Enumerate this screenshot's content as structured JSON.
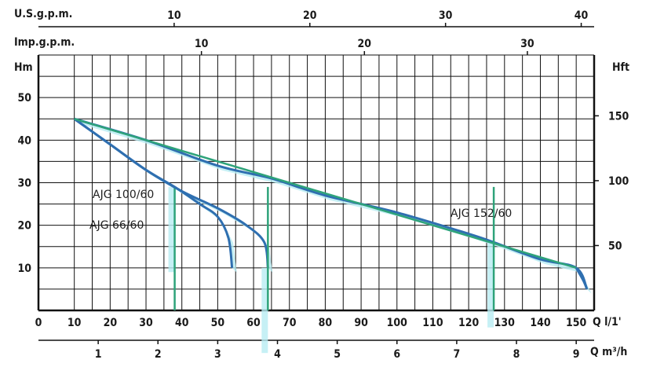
{
  "chart_data": {
    "type": "line",
    "title": "",
    "axes": {
      "x_main": {
        "unit": "Q l/1'",
        "ticks": [
          "0",
          "10",
          "20",
          "30",
          "40",
          "50",
          "60",
          "70",
          "80",
          "90",
          "100",
          "110",
          "120",
          "130",
          "140",
          "150"
        ]
      },
      "x_m3h": {
        "unit": "Q m³/h",
        "ticks": [
          "1",
          "2",
          "3",
          "4",
          "5",
          "6",
          "7",
          "8",
          "9"
        ]
      },
      "x_usgpm": {
        "unit": "U.S.g.p.m.",
        "ticks": [
          "10",
          "20",
          "30",
          "40"
        ]
      },
      "x_impgpm": {
        "unit": "Imp.g.p.m.",
        "ticks": [
          "10",
          "20",
          "30"
        ]
      },
      "y_left": {
        "unit": "Hm",
        "ticks": [
          "10",
          "20",
          "30",
          "40",
          "50"
        ]
      },
      "y_right": {
        "unit": "Hft",
        "ticks": [
          "50",
          "100",
          "150"
        ]
      }
    },
    "xlim": [
      0,
      155
    ],
    "ylim": [
      0,
      60
    ],
    "grid": true,
    "series": [
      {
        "name": "AJG 66/60",
        "x": [
          10,
          20,
          30,
          38,
          45,
          50,
          53,
          54
        ],
        "y": [
          45,
          39,
          33,
          29,
          25,
          22,
          17,
          10
        ],
        "cutoff": 38
      },
      {
        "name": "AJG 100/60",
        "x": [
          10,
          20,
          30,
          40,
          50,
          58,
          63,
          64
        ],
        "y": [
          45,
          39,
          33,
          28,
          24,
          20,
          16,
          10
        ],
        "cutoff": 64
      },
      {
        "name": "AJG 152/60",
        "x": [
          10,
          30,
          50,
          65,
          80,
          100,
          120,
          127,
          140,
          150,
          153
        ],
        "y": [
          45,
          40,
          34,
          31,
          27,
          23,
          18,
          16,
          12,
          10,
          5
        ],
        "cutoff": 127
      }
    ],
    "labels": {
      "ajg100": "AJG 100/60",
      "ajg66": "AJG 66/60",
      "ajg152": "AJG 152/60"
    },
    "colors": {
      "grid": "#111111",
      "pump_line": "#2f6fb0",
      "fill": "#b8ecf2",
      "green_line": "#2ea37a"
    }
  }
}
